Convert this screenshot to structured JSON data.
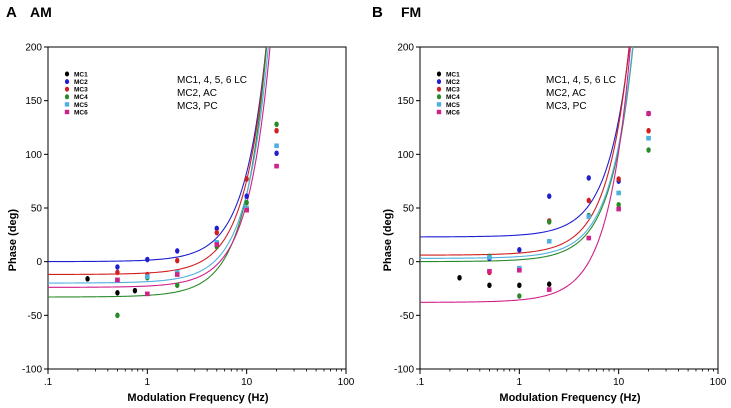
{
  "chart_data": [
    {
      "type": "scatter",
      "panel_letter": "A",
      "title": "AM",
      "xlabel": "Modulation Frequency (Hz)",
      "ylabel": "Phase (deg)",
      "xscale": "log",
      "xlim": [
        0.1,
        100
      ],
      "ylim": [
        -100,
        200
      ],
      "xticks": [
        0.1,
        1,
        10,
        100
      ],
      "xtick_labels": [
        ".1",
        "1",
        "10",
        "100"
      ],
      "yticks": [
        -100,
        -50,
        0,
        50,
        100,
        150,
        200
      ],
      "ytick_labels": [
        "-100",
        "-50",
        "0",
        "50",
        "100",
        "150",
        "200"
      ],
      "annotations": [
        "MC1, 4, 5, 6  LC",
        "MC2, AC",
        "MC3, PC"
      ],
      "legend_position": "top-left",
      "series": [
        {
          "name": "MC1",
          "color": "#000000",
          "points": [
            [
              0.25,
              -16
            ],
            [
              0.5,
              -29
            ],
            [
              0.75,
              -27
            ],
            [
              1,
              -14
            ]
          ]
        },
        {
          "name": "MC2",
          "color": "#1f1fd0",
          "points": [
            [
              0.5,
              -5
            ],
            [
              1,
              2
            ],
            [
              2,
              10
            ],
            [
              5,
              31
            ],
            [
              10,
              61
            ],
            [
              20,
              101
            ]
          ]
        },
        {
          "name": "MC3",
          "color": "#d01f1f",
          "points": [
            [
              0.5,
              -10
            ],
            [
              1,
              -12
            ],
            [
              2,
              1
            ],
            [
              5,
              27
            ],
            [
              10,
              77
            ],
            [
              20,
              122
            ]
          ]
        },
        {
          "name": "MC4",
          "color": "#2a8a2a",
          "points": [
            [
              0.5,
              -50
            ],
            [
              1,
              -15
            ],
            [
              2,
              -22
            ],
            [
              5,
              14
            ],
            [
              10,
              55
            ],
            [
              20,
              128
            ]
          ]
        },
        {
          "name": "MC5",
          "color": "#4fb0e0",
          "points": [
            [
              0.5,
              -17
            ],
            [
              1,
              -14
            ],
            [
              2,
              -10
            ],
            [
              5,
              18
            ],
            [
              10,
              50
            ],
            [
              20,
              108
            ]
          ]
        },
        {
          "name": "MC6",
          "color": "#d0208a",
          "points": [
            [
              0.5,
              -17
            ],
            [
              1,
              -30
            ],
            [
              2,
              -12
            ],
            [
              5,
              16
            ],
            [
              10,
              48
            ],
            [
              20,
              89
            ]
          ]
        }
      ],
      "fits": [
        {
          "name": "MC2",
          "color": "#1f1fd0",
          "offset": 0,
          "slope": 3.08
        },
        {
          "name": "MC3",
          "color": "#d01f1f",
          "offset": -12,
          "slope": 3.25
        },
        {
          "name": "MC4",
          "color": "#2a8a2a",
          "offset": -33,
          "slope": 3.53
        },
        {
          "name": "MC5",
          "color": "#4fb0e0",
          "offset": -20,
          "slope": 3.08
        },
        {
          "name": "MC6",
          "color": "#d0208a",
          "offset": -24,
          "slope": 2.9
        }
      ]
    },
    {
      "type": "scatter",
      "panel_letter": "B",
      "title": "FM",
      "xlabel": "Modulation Frequency (Hz)",
      "ylabel": "Phase (deg)",
      "xscale": "log",
      "xlim": [
        0.1,
        100
      ],
      "ylim": [
        -100,
        200
      ],
      "xticks": [
        0.1,
        1,
        10,
        100
      ],
      "xtick_labels": [
        ".1",
        "1",
        "10",
        "100"
      ],
      "yticks": [
        -100,
        -50,
        0,
        50,
        100,
        150,
        200
      ],
      "ytick_labels": [
        "-100",
        "-50",
        "0",
        "50",
        "100",
        "150",
        "200"
      ],
      "annotations": [
        "MC1, 4, 5, 6  LC",
        "MC2, AC",
        "MC3, PC"
      ],
      "legend_position": "top-left",
      "series": [
        {
          "name": "MC1",
          "color": "#000000",
          "points": [
            [
              0.25,
              -15
            ],
            [
              0.5,
              -22
            ],
            [
              1,
              -22
            ],
            [
              2,
              -21
            ]
          ]
        },
        {
          "name": "MC2",
          "color": "#1f1fd0",
          "points": [
            [
              0.5,
              3
            ],
            [
              1,
              11
            ],
            [
              2,
              61
            ],
            [
              5,
              78
            ],
            [
              10,
              75
            ],
            [
              20,
              138
            ]
          ]
        },
        {
          "name": "MC3",
          "color": "#d01f1f",
          "points": [
            [
              0.5,
              -10
            ],
            [
              1,
              -7
            ],
            [
              2,
              38
            ],
            [
              5,
              57
            ],
            [
              10,
              77
            ],
            [
              20,
              122
            ]
          ]
        },
        {
          "name": "MC4",
          "color": "#2a8a2a",
          "points": [
            [
              0.5,
              5
            ],
            [
              1,
              -32
            ],
            [
              2,
              37
            ],
            [
              5,
              43
            ],
            [
              10,
              53
            ],
            [
              20,
              104
            ]
          ]
        },
        {
          "name": "MC5",
          "color": "#4fb0e0",
          "points": [
            [
              0.5,
              4
            ],
            [
              1,
              -6
            ],
            [
              2,
              19
            ],
            [
              5,
              42
            ],
            [
              10,
              64
            ],
            [
              20,
              115
            ]
          ]
        },
        {
          "name": "MC6",
          "color": "#d0208a",
          "points": [
            [
              0.5,
              -9
            ],
            [
              1,
              -8
            ],
            [
              2,
              -26
            ],
            [
              5,
              22
            ],
            [
              10,
              49
            ],
            [
              20,
              138
            ]
          ]
        }
      ],
      "fits": [
        {
          "name": "MC2",
          "color": "#1f1fd0",
          "offset": 23,
          "slope": 4.05
        },
        {
          "name": "MC3",
          "color": "#d01f1f",
          "offset": 6,
          "slope": 4.5
        },
        {
          "name": "MC4",
          "color": "#2a8a2a",
          "offset": 0,
          "slope": 3.9
        },
        {
          "name": "MC5",
          "color": "#4fb0e0",
          "offset": 3,
          "slope": 3.9
        },
        {
          "name": "MC6",
          "color": "#d0208a",
          "offset": -38,
          "slope": 5.2
        }
      ]
    }
  ]
}
